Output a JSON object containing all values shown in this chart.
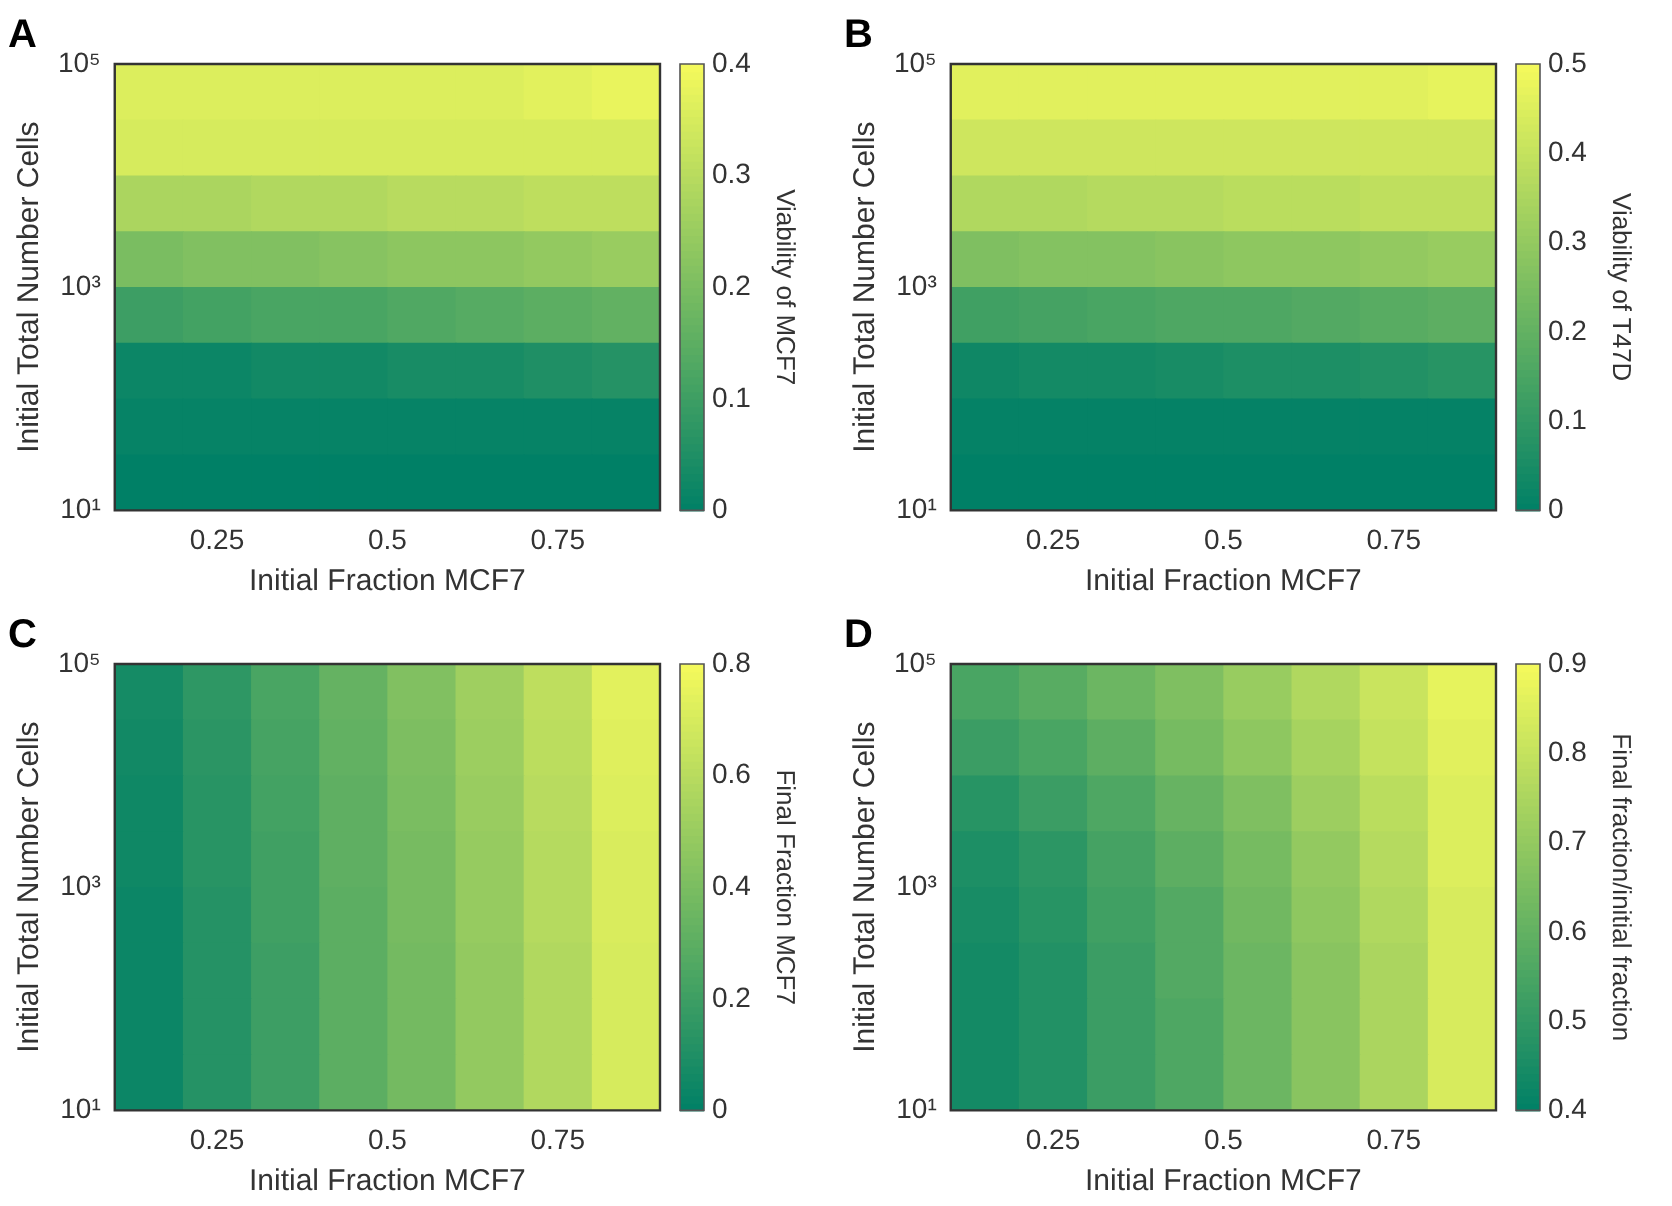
{
  "chart_data": [
    {
      "type": "heatmap",
      "title": "A",
      "xlabel": "Initial Fraction MCF7",
      "ylabel": "Initial Total Number Cells",
      "clabel": "Viability of MCF7",
      "log": "y",
      "xlim": [
        0.1,
        0.9
      ],
      "xticks": [
        0.25,
        0.5,
        0.75
      ],
      "ylim": [
        10,
        100000
      ],
      "yticks": [
        {
          "value": 10,
          "label": "10¹"
        },
        {
          "value": 1000,
          "label": "10³"
        },
        {
          "value": 100000,
          "label": "10⁵"
        }
      ],
      "clim": [
        0,
        0.4
      ],
      "cticks": [
        0,
        0.1,
        0.2,
        0.3,
        0.4
      ],
      "x": [
        0.15,
        0.25,
        0.35,
        0.45,
        0.55,
        0.65,
        0.75,
        0.85
      ],
      "y": [
        56000,
        18000,
        5600,
        1800,
        560,
        180,
        56,
        18
      ],
      "cells": [
        [
          0.36,
          0.36,
          0.36,
          0.36,
          0.36,
          0.36,
          0.37,
          0.38
        ],
        [
          0.35,
          0.35,
          0.35,
          0.35,
          0.35,
          0.35,
          0.35,
          0.35
        ],
        [
          0.28,
          0.28,
          0.29,
          0.29,
          0.3,
          0.3,
          0.31,
          0.31
        ],
        [
          0.2,
          0.21,
          0.21,
          0.22,
          0.23,
          0.23,
          0.24,
          0.25
        ],
        [
          0.1,
          0.11,
          0.12,
          0.12,
          0.13,
          0.14,
          0.15,
          0.16
        ],
        [
          0.02,
          0.02,
          0.03,
          0.03,
          0.04,
          0.04,
          0.05,
          0.06
        ],
        [
          0.01,
          0.01,
          0.01,
          0.01,
          0.01,
          0.01,
          0.01,
          0.01
        ],
        [
          0,
          0,
          0,
          0,
          0,
          0,
          0,
          0
        ]
      ]
    },
    {
      "type": "heatmap",
      "title": "B",
      "xlabel": "Initial Fraction MCF7",
      "ylabel": "Initial Total Number Cells",
      "clabel": "Viability of T47D",
      "log": "y",
      "xlim": [
        0.1,
        0.9
      ],
      "xticks": [
        0.25,
        0.5,
        0.75
      ],
      "ylim": [
        10,
        100000
      ],
      "yticks": [
        {
          "value": 10,
          "label": "10¹"
        },
        {
          "value": 1000,
          "label": "10³"
        },
        {
          "value": 100000,
          "label": "10⁵"
        }
      ],
      "clim": [
        0,
        0.5
      ],
      "cticks": [
        0,
        0.1,
        0.2,
        0.3,
        0.4,
        0.5
      ],
      "x": [
        0.15,
        0.25,
        0.35,
        0.45,
        0.55,
        0.65,
        0.75,
        0.85
      ],
      "y": [
        56000,
        18000,
        5600,
        1800,
        560,
        180,
        56,
        18
      ],
      "cells": [
        [
          0.46,
          0.46,
          0.46,
          0.46,
          0.46,
          0.46,
          0.46,
          0.47
        ],
        [
          0.42,
          0.42,
          0.42,
          0.42,
          0.42,
          0.42,
          0.42,
          0.42
        ],
        [
          0.36,
          0.36,
          0.37,
          0.37,
          0.38,
          0.38,
          0.39,
          0.39
        ],
        [
          0.26,
          0.27,
          0.27,
          0.28,
          0.29,
          0.29,
          0.3,
          0.31
        ],
        [
          0.13,
          0.14,
          0.15,
          0.16,
          0.16,
          0.17,
          0.18,
          0.19
        ],
        [
          0.03,
          0.04,
          0.04,
          0.05,
          0.06,
          0.06,
          0.07,
          0.08
        ],
        [
          0.01,
          0.01,
          0.01,
          0.01,
          0.01,
          0.01,
          0.01,
          0.01
        ],
        [
          0,
          0,
          0,
          0,
          0,
          0,
          0,
          0
        ]
      ]
    },
    {
      "type": "heatmap",
      "title": "C",
      "xlabel": "Initial Fraction MCF7",
      "ylabel": "Initial Total Number Cells",
      "clabel": "Final Fraction MCF7",
      "log": "y",
      "xlim": [
        0.1,
        0.9
      ],
      "xticks": [
        0.25,
        0.5,
        0.75
      ],
      "ylim": [
        10,
        100000
      ],
      "yticks": [
        {
          "value": 10,
          "label": "10¹"
        },
        {
          "value": 1000,
          "label": "10³"
        },
        {
          "value": 100000,
          "label": "10⁵"
        }
      ],
      "clim": [
        0,
        0.8
      ],
      "cticks": [
        0,
        0.2,
        0.4,
        0.6,
        0.8
      ],
      "x": [
        0.15,
        0.25,
        0.35,
        0.45,
        0.55,
        0.65,
        0.75,
        0.85
      ],
      "y": [
        56000,
        18000,
        5600,
        1800,
        560,
        180,
        56,
        18
      ],
      "cells": [
        [
          0.07,
          0.15,
          0.24,
          0.33,
          0.42,
          0.52,
          0.62,
          0.74
        ],
        [
          0.06,
          0.14,
          0.23,
          0.32,
          0.41,
          0.51,
          0.61,
          0.73
        ],
        [
          0.05,
          0.13,
          0.22,
          0.31,
          0.4,
          0.5,
          0.6,
          0.72
        ],
        [
          0.05,
          0.13,
          0.21,
          0.31,
          0.39,
          0.49,
          0.59,
          0.71
        ],
        [
          0.04,
          0.12,
          0.21,
          0.3,
          0.39,
          0.49,
          0.59,
          0.71
        ],
        [
          0.04,
          0.12,
          0.2,
          0.3,
          0.38,
          0.48,
          0.58,
          0.7
        ],
        [
          0.04,
          0.12,
          0.2,
          0.3,
          0.38,
          0.48,
          0.58,
          0.7
        ],
        [
          0.04,
          0.12,
          0.2,
          0.3,
          0.38,
          0.48,
          0.58,
          0.7
        ]
      ]
    },
    {
      "type": "heatmap",
      "title": "D",
      "xlabel": "Initial Fraction MCF7",
      "ylabel": "Initial Total Number Cells",
      "clabel": "Final fraction/initial fraction",
      "log": "y",
      "xlim": [
        0.1,
        0.9
      ],
      "xticks": [
        0.25,
        0.5,
        0.75
      ],
      "ylim": [
        10,
        100000
      ],
      "yticks": [
        {
          "value": 10,
          "label": "10¹"
        },
        {
          "value": 1000,
          "label": "10³"
        },
        {
          "value": 100000,
          "label": "10⁵"
        }
      ],
      "clim": [
        0.4,
        0.9
      ],
      "cticks": [
        0.4,
        0.5,
        0.6,
        0.7,
        0.8,
        0.9
      ],
      "x": [
        0.15,
        0.25,
        0.35,
        0.45,
        0.55,
        0.65,
        0.75,
        0.85
      ],
      "y": [
        56000,
        18000,
        5600,
        1800,
        560,
        180,
        56,
        18
      ],
      "cells": [
        [
          0.55,
          0.58,
          0.62,
          0.66,
          0.71,
          0.76,
          0.81,
          0.87
        ],
        [
          0.52,
          0.55,
          0.59,
          0.64,
          0.69,
          0.74,
          0.8,
          0.86
        ],
        [
          0.48,
          0.52,
          0.56,
          0.61,
          0.66,
          0.72,
          0.78,
          0.85
        ],
        [
          0.46,
          0.49,
          0.54,
          0.59,
          0.64,
          0.7,
          0.77,
          0.85
        ],
        [
          0.45,
          0.48,
          0.53,
          0.57,
          0.63,
          0.69,
          0.76,
          0.84
        ],
        [
          0.44,
          0.47,
          0.52,
          0.57,
          0.62,
          0.68,
          0.75,
          0.84
        ],
        [
          0.44,
          0.47,
          0.52,
          0.56,
          0.62,
          0.68,
          0.75,
          0.84
        ],
        [
          0.44,
          0.47,
          0.52,
          0.56,
          0.62,
          0.68,
          0.75,
          0.84
        ]
      ]
    }
  ]
}
